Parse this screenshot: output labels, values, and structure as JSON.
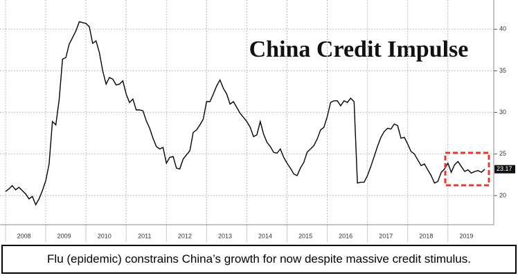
{
  "chart_data": {
    "type": "line",
    "title": "China Credit Impulse",
    "categories": [
      null,
      null,
      null,
      null,
      null,
      null,
      "2008",
      null,
      null,
      null,
      null,
      null,
      null,
      null,
      null,
      null,
      null,
      null,
      "2009",
      null,
      null,
      null,
      null,
      null,
      null,
      null,
      null,
      null,
      null,
      null,
      "2010",
      null,
      null,
      null,
      null,
      null,
      null,
      null,
      null,
      null,
      null,
      null,
      "2011",
      null,
      null,
      null,
      null,
      null,
      null,
      null,
      null,
      null,
      null,
      null,
      "2012",
      null,
      null,
      null,
      null,
      null,
      null,
      null,
      null,
      null,
      null,
      null,
      "2013",
      null,
      null,
      null,
      null,
      null,
      null,
      null,
      null,
      null,
      null,
      null,
      "2014",
      null,
      null,
      null,
      null,
      null,
      null,
      null,
      null,
      null,
      null,
      null,
      "2015",
      null,
      null,
      null,
      null,
      null,
      null,
      null,
      null,
      null,
      null,
      null,
      "2016",
      null,
      null,
      null,
      null,
      null,
      null,
      null,
      null,
      null,
      null,
      null,
      "2017",
      null,
      null,
      null,
      null,
      null,
      null,
      null,
      null,
      null,
      null,
      null,
      "2018",
      null,
      null,
      null,
      null,
      null,
      null,
      null,
      null,
      null,
      null,
      null,
      "2019",
      null,
      null,
      null,
      null,
      null
    ],
    "values": [
      20.5,
      20.8,
      21.2,
      20.7,
      21.0,
      20.6,
      20.2,
      19.6,
      19.9,
      18.9,
      19.6,
      20.6,
      21.8,
      23.8,
      28.9,
      28.5,
      31.5,
      36.4,
      36.6,
      38.2,
      39.0,
      39.8,
      40.9,
      40.8,
      40.7,
      40.3,
      38.3,
      38.6,
      37.2,
      35.0,
      33.4,
      34.2,
      34.0,
      33.3,
      33.4,
      33.8,
      32.2,
      31.2,
      31.6,
      30.3,
      30.3,
      30.2,
      29.0,
      28.1,
      26.9,
      25.9,
      25.6,
      25.8,
      23.9,
      24.6,
      24.7,
      23.3,
      23.2,
      24.4,
      24.9,
      25.4,
      27.6,
      27.9,
      28.5,
      29.2,
      31.3,
      31.3,
      32.2,
      33.2,
      33.9,
      32.9,
      32.2,
      31.0,
      31.3,
      30.6,
      29.9,
      29.4,
      28.9,
      28.2,
      27.1,
      27.3,
      28.9,
      27.4,
      26.4,
      25.9,
      25.2,
      25.1,
      25.6,
      24.6,
      23.9,
      23.3,
      22.6,
      22.4,
      23.3,
      24.0,
      25.2,
      25.6,
      26.0,
      26.8,
      27.9,
      28.2,
      29.5,
      31.2,
      31.4,
      31.4,
      30.8,
      31.4,
      31.2,
      31.7,
      31.3,
      21.5,
      21.6,
      21.6,
      22.4,
      23.5,
      24.7,
      25.9,
      27.0,
      27.7,
      28.1,
      28.0,
      28.6,
      28.4,
      26.9,
      27.0,
      26.2,
      25.3,
      25.0,
      24.3,
      23.6,
      23.8,
      23.1,
      22.4,
      21.5,
      21.7,
      22.8,
      23.2,
      23.9,
      22.8,
      23.7,
      24.1,
      23.5,
      22.9,
      23.1,
      22.7,
      22.9,
      23.0,
      22.8,
      23.17
    ],
    "color": "#000000",
    "ylim": [
      16.5,
      43.1
    ],
    "yticks": [
      20,
      25,
      30,
      35,
      40
    ],
    "grid": true
  },
  "caption": "Flu (epidemic) constrains China’s growth for now despite massive credit stimulus."
}
